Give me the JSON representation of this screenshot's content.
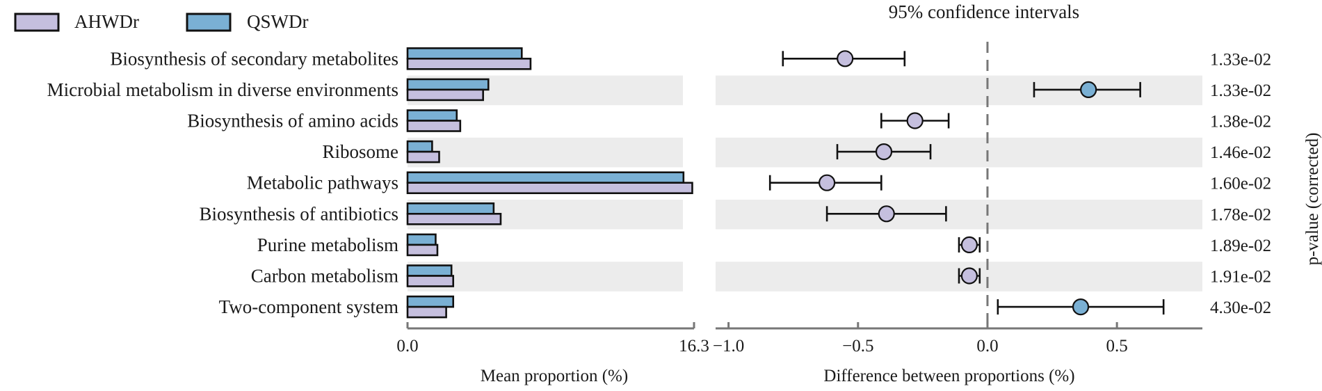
{
  "chart_data": [
    {
      "type": "bar",
      "orientation": "horizontal",
      "title": "",
      "xlabel": "Mean proportion (%)",
      "ylabel": "",
      "xlim": [
        0,
        16.3
      ],
      "xticks": [
        "0.0",
        "16.3"
      ],
      "categories": [
        "Biosynthesis of secondary metabolites",
        "Microbial metabolism in diverse environments",
        "Biosynthesis of amino acids",
        "Ribosome",
        "Metabolic pathways",
        "Biosynthesis of antibiotics",
        "Purine metabolism",
        "Carbon metabolism",
        "Two-component system"
      ],
      "series": [
        {
          "name": "QSWDr",
          "color": "#7ab0d4",
          "values": [
            6.5,
            4.6,
            2.8,
            1.4,
            15.7,
            4.9,
            1.6,
            2.5,
            2.6
          ]
        },
        {
          "name": "AHWDr",
          "color": "#c5bfde",
          "values": [
            7.0,
            4.3,
            3.0,
            1.8,
            16.2,
            5.3,
            1.7,
            2.6,
            2.2
          ]
        }
      ],
      "legend": {
        "position": "top-left",
        "entries": [
          "AHWDr",
          "QSWDr"
        ]
      }
    },
    {
      "type": "scatter",
      "subtype": "confidence-interval",
      "title": "95% confidence intervals",
      "xlabel": "Difference between proportions (%)",
      "right_label": "p-value (corrected)",
      "xlim": [
        -1.05,
        0.83
      ],
      "xticks": [
        -1.0,
        -0.5,
        0.0,
        0.5
      ],
      "xtick_labels": [
        "−1.0",
        "−0.5",
        "0.0",
        "0.5"
      ],
      "reference_line": 0.0,
      "points": [
        {
          "category": "Biosynthesis of secondary metabolites",
          "value": -0.55,
          "low": -0.79,
          "high": -0.32,
          "group": "AHWDr",
          "p_value": "1.33e-02"
        },
        {
          "category": "Microbial metabolism in diverse environments",
          "value": 0.39,
          "low": 0.18,
          "high": 0.59,
          "group": "QSWDr",
          "p_value": "1.33e-02"
        },
        {
          "category": "Biosynthesis of amino acids",
          "value": -0.28,
          "low": -0.41,
          "high": -0.15,
          "group": "AHWDr",
          "p_value": "1.38e-02"
        },
        {
          "category": "Ribosome",
          "value": -0.4,
          "low": -0.58,
          "high": -0.22,
          "group": "AHWDr",
          "p_value": "1.46e-02"
        },
        {
          "category": "Metabolic pathways",
          "value": -0.62,
          "low": -0.84,
          "high": -0.41,
          "group": "AHWDr",
          "p_value": "1.60e-02"
        },
        {
          "category": "Biosynthesis of antibiotics",
          "value": -0.39,
          "low": -0.62,
          "high": -0.16,
          "group": "AHWDr",
          "p_value": "1.78e-02"
        },
        {
          "category": "Purine metabolism",
          "value": -0.07,
          "low": -0.11,
          "high": -0.03,
          "group": "AHWDr",
          "p_value": "1.89e-02"
        },
        {
          "category": "Carbon metabolism",
          "value": -0.07,
          "low": -0.11,
          "high": -0.03,
          "group": "AHWDr",
          "p_value": "1.91e-02"
        },
        {
          "category": "Two-component system",
          "value": 0.36,
          "low": 0.04,
          "high": 0.68,
          "group": "QSWDr",
          "p_value": "4.30e-02"
        }
      ]
    }
  ]
}
